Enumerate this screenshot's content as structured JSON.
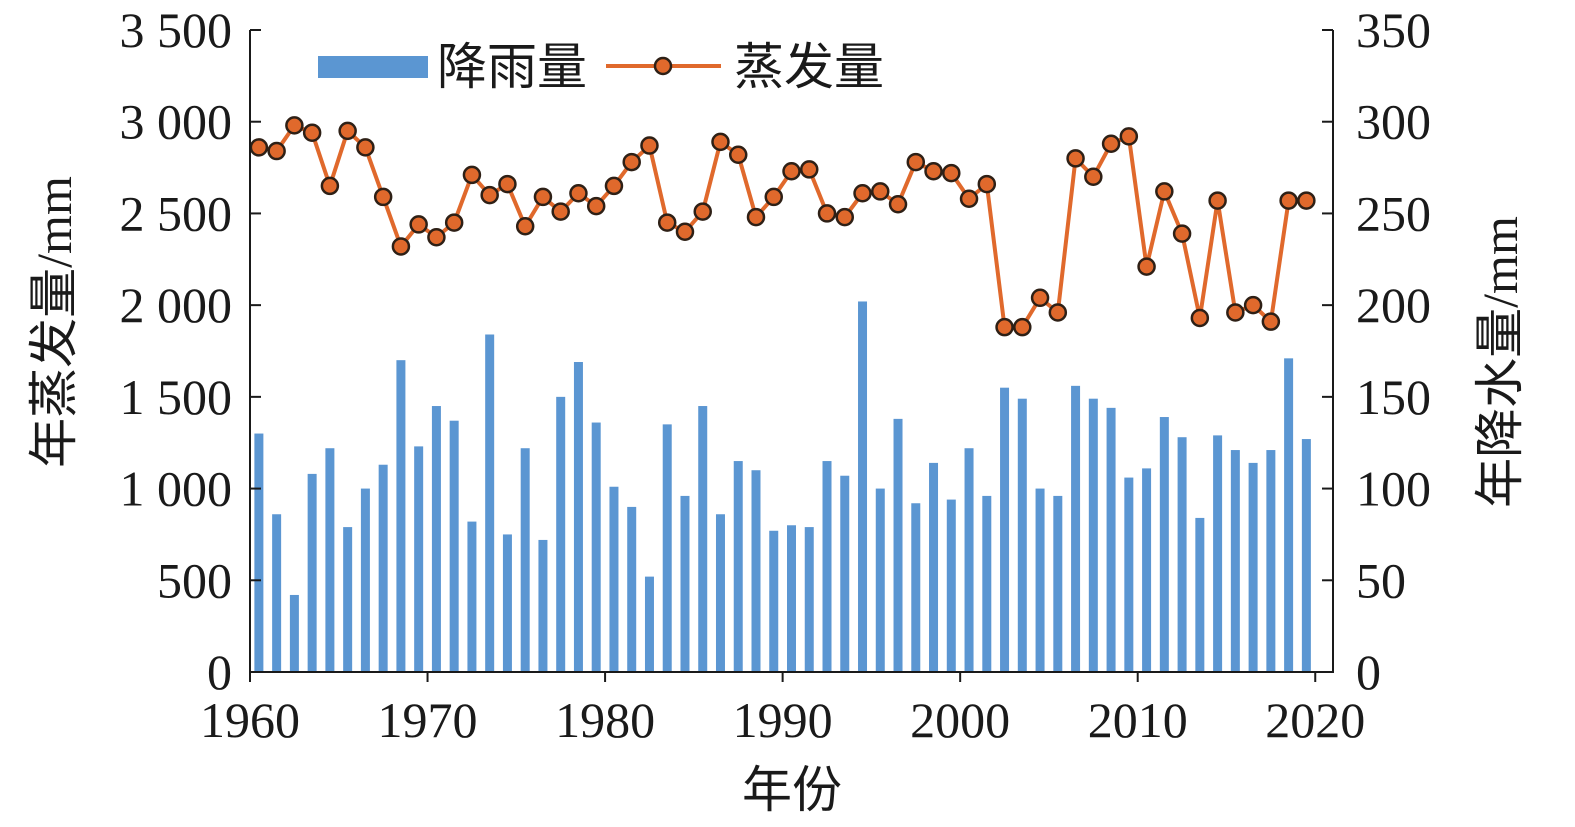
{
  "chart_data": {
    "type": "bar",
    "xlabel": "年份",
    "ylabel_left": "年蒸发量/mm",
    "ylabel_right": "年降水量/mm",
    "xlim": [
      1960,
      2021
    ],
    "ylim_left": [
      0,
      3500
    ],
    "ylim_right": [
      0,
      350
    ],
    "x_ticks": [
      "1960",
      "1970",
      "1980",
      "1990",
      "2000",
      "2010",
      "2020"
    ],
    "y_left_ticks": [
      "0",
      "500",
      "1 000",
      "1 500",
      "2 000",
      "2 500",
      "3 000",
      "3 500"
    ],
    "y_right_ticks": [
      "0",
      "50",
      "100",
      "150",
      "200",
      "250",
      "300",
      "350"
    ],
    "grid": false,
    "legend_position": "top-left",
    "x": [
      1961,
      1962,
      1963,
      1964,
      1965,
      1966,
      1967,
      1968,
      1969,
      1970,
      1971,
      1972,
      1973,
      1974,
      1975,
      1976,
      1977,
      1978,
      1979,
      1980,
      1981,
      1982,
      1983,
      1984,
      1985,
      1986,
      1987,
      1988,
      1989,
      1990,
      1991,
      1992,
      1993,
      1994,
      1995,
      1996,
      1997,
      1998,
      1999,
      2000,
      2001,
      2002,
      2003,
      2004,
      2005,
      2006,
      2007,
      2008,
      2009,
      2010,
      2011,
      2012,
      2013,
      2014,
      2015,
      2016,
      2017,
      2018,
      2019,
      2020
    ],
    "series": [
      {
        "name": "降雨量",
        "type": "bar",
        "axis": "right",
        "color": "#5b96d2",
        "values": [
          130,
          86,
          42,
          108,
          122,
          79,
          100,
          113,
          170,
          123,
          145,
          137,
          82,
          184,
          75,
          122,
          72,
          150,
          169,
          136,
          101,
          90,
          52,
          135,
          96,
          145,
          86,
          115,
          110,
          77,
          80,
          79,
          115,
          107,
          202,
          100,
          138,
          92,
          114,
          94,
          122,
          96,
          155,
          149,
          100,
          96,
          156,
          149,
          144,
          106,
          111,
          139,
          128,
          84,
          129,
          121,
          114,
          121,
          171,
          127
        ]
      },
      {
        "name": "蒸发量",
        "type": "line",
        "axis": "left",
        "color": "#e0692c",
        "marker": "circle",
        "marker_edge_color": "#2e2016",
        "values": [
          2860,
          2840,
          2980,
          2940,
          2650,
          2950,
          2860,
          2590,
          2320,
          2440,
          2370,
          2450,
          2710,
          2600,
          2660,
          2430,
          2590,
          2510,
          2610,
          2540,
          2650,
          2780,
          2870,
          2450,
          2400,
          2510,
          2890,
          2820,
          2480,
          2590,
          2730,
          2740,
          2500,
          2480,
          2610,
          2620,
          2550,
          2780,
          2730,
          2720,
          2580,
          2660,
          1880,
          1880,
          2040,
          1960,
          2800,
          2700,
          2880,
          2920,
          2210,
          2620,
          2390,
          1930,
          2570,
          1960,
          2000,
          1910,
          2570,
          2570
        ]
      }
    ]
  }
}
